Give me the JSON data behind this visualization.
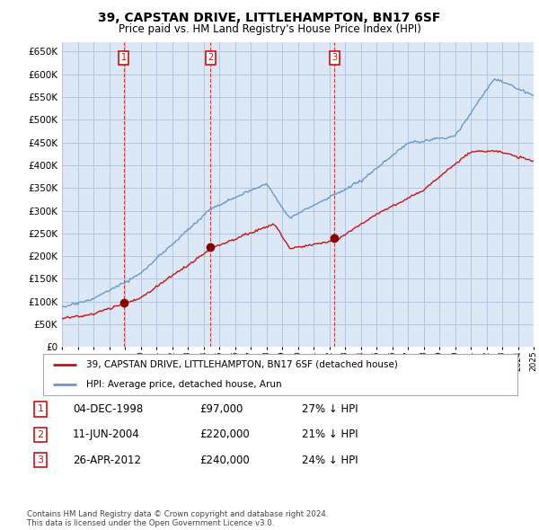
{
  "title": "39, CAPSTAN DRIVE, LITTLEHAMPTON, BN17 6SF",
  "subtitle": "Price paid vs. HM Land Registry's House Price Index (HPI)",
  "title_fontsize": 10,
  "subtitle_fontsize": 8.5,
  "background_color": "#ffffff",
  "plot_bg_color": "#dce8f5",
  "grid_color": "#b0c8e0",
  "ylim": [
    0,
    670000
  ],
  "yticks": [
    0,
    50000,
    100000,
    150000,
    200000,
    250000,
    300000,
    350000,
    400000,
    450000,
    500000,
    550000,
    600000,
    650000
  ],
  "hpi_color": "#6699cc",
  "price_color": "#cc1111",
  "sale_dot_color": "#880000",
  "legend_line1": "39, CAPSTAN DRIVE, LITTLEHAMPTON, BN17 6SF (detached house)",
  "legend_line2": "HPI: Average price, detached house, Arun",
  "sale1_date": 1998.92,
  "sale1_price": 97000,
  "sale1_label": "1",
  "sale2_date": 2004.44,
  "sale2_price": 220000,
  "sale2_label": "2",
  "sale3_date": 2012.32,
  "sale3_price": 240000,
  "sale3_label": "3",
  "table_data": [
    [
      "1",
      "04-DEC-1998",
      "£97,000",
      "27% ↓ HPI"
    ],
    [
      "2",
      "11-JUN-2004",
      "£220,000",
      "21% ↓ HPI"
    ],
    [
      "3",
      "26-APR-2012",
      "£240,000",
      "24% ↓ HPI"
    ]
  ],
  "footer_text": "Contains HM Land Registry data © Crown copyright and database right 2024.\nThis data is licensed under the Open Government Licence v3.0.",
  "xmin": 1995,
  "xmax": 2025
}
